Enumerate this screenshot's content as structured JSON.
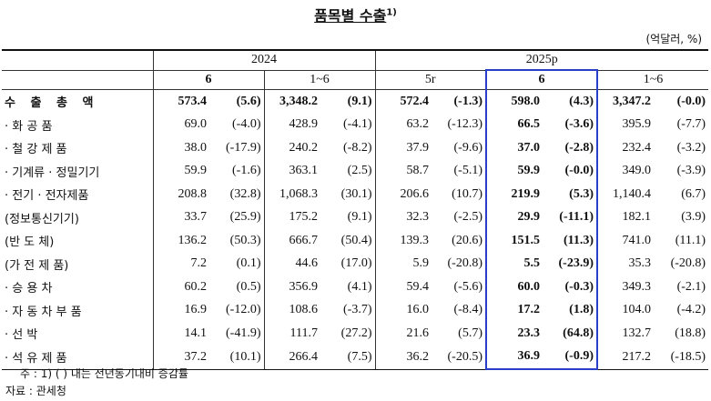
{
  "title": "품목별 수출",
  "title_note": "1)",
  "unit": "(억달러, %)",
  "header": {
    "years": [
      "2024",
      "2025p"
    ],
    "periods": [
      "6",
      "1~6",
      "5r",
      "6",
      "1~6"
    ]
  },
  "table": {
    "rows": [
      [
        "수 출 총 액",
        "573.4",
        "(5.6)",
        "3,348.2",
        "(9.1)",
        "572.4",
        "(-1.3)",
        "598.0",
        "(4.3)",
        "3,347.2",
        "(-0.0)"
      ],
      [
        "· 화 공 품",
        "69.0",
        "(-4.0)",
        "428.9",
        "(-4.1)",
        "63.2",
        "(-12.3)",
        "66.5",
        "(-3.6)",
        "395.9",
        "(-7.7)"
      ],
      [
        "· 철 강 제 품",
        "38.0",
        "(-17.9)",
        "240.2",
        "(-8.2)",
        "37.9",
        "(-9.6)",
        "37.0",
        "(-2.8)",
        "232.4",
        "(-3.2)"
      ],
      [
        "· 기계류 · 정밀기기",
        "59.9",
        "(-1.6)",
        "363.1",
        "(2.5)",
        "58.7",
        "(-5.1)",
        "59.9",
        "(-0.0)",
        "349.0",
        "(-3.9)"
      ],
      [
        "· 전기 · 전자제품",
        "208.8",
        "(32.8)",
        "1,068.3",
        "(30.1)",
        "206.6",
        "(10.7)",
        "219.9",
        "(5.3)",
        "1,140.4",
        "(6.7)"
      ],
      [
        "(정보통신기기)",
        "33.7",
        "(25.9)",
        "175.2",
        "(9.1)",
        "32.3",
        "(-2.5)",
        "29.9",
        "(-11.1)",
        "182.1",
        "(3.9)"
      ],
      [
        "(반 도 체)",
        "136.2",
        "(50.3)",
        "666.7",
        "(50.4)",
        "139.3",
        "(20.6)",
        "151.5",
        "(11.3)",
        "741.0",
        "(11.1)"
      ],
      [
        "(가 전 제 품)",
        "7.2",
        "(0.1)",
        "44.6",
        "(17.0)",
        "5.9",
        "(-20.8)",
        "5.5",
        "(-23.9)",
        "35.3",
        "(-20.8)"
      ],
      [
        "· 승 용 차",
        "60.2",
        "(0.5)",
        "356.9",
        "(4.1)",
        "59.4",
        "(-5.6)",
        "60.0",
        "(-0.3)",
        "349.3",
        "(-2.1)"
      ],
      [
        "· 자 동 차 부 품",
        "16.9",
        "(-12.0)",
        "108.6",
        "(-3.7)",
        "16.0",
        "(-8.4)",
        "17.2",
        "(1.8)",
        "104.0",
        "(-4.2)"
      ],
      [
        "· 선 박",
        "14.1",
        "(-41.9)",
        "111.7",
        "(27.2)",
        "21.6",
        "(5.7)",
        "23.3",
        "(64.8)",
        "132.7",
        "(18.8)"
      ],
      [
        "· 석 유 제 품",
        "37.2",
        "(10.1)",
        "266.4",
        "(7.5)",
        "36.2",
        "(-20.5)",
        "36.9",
        "(-0.9)",
        "217.2",
        "(-18.5)"
      ]
    ]
  },
  "notes": [
    "주 : 1) ( ) 내는 전년동기대비 증감률",
    "자료 : 관세청"
  ]
}
